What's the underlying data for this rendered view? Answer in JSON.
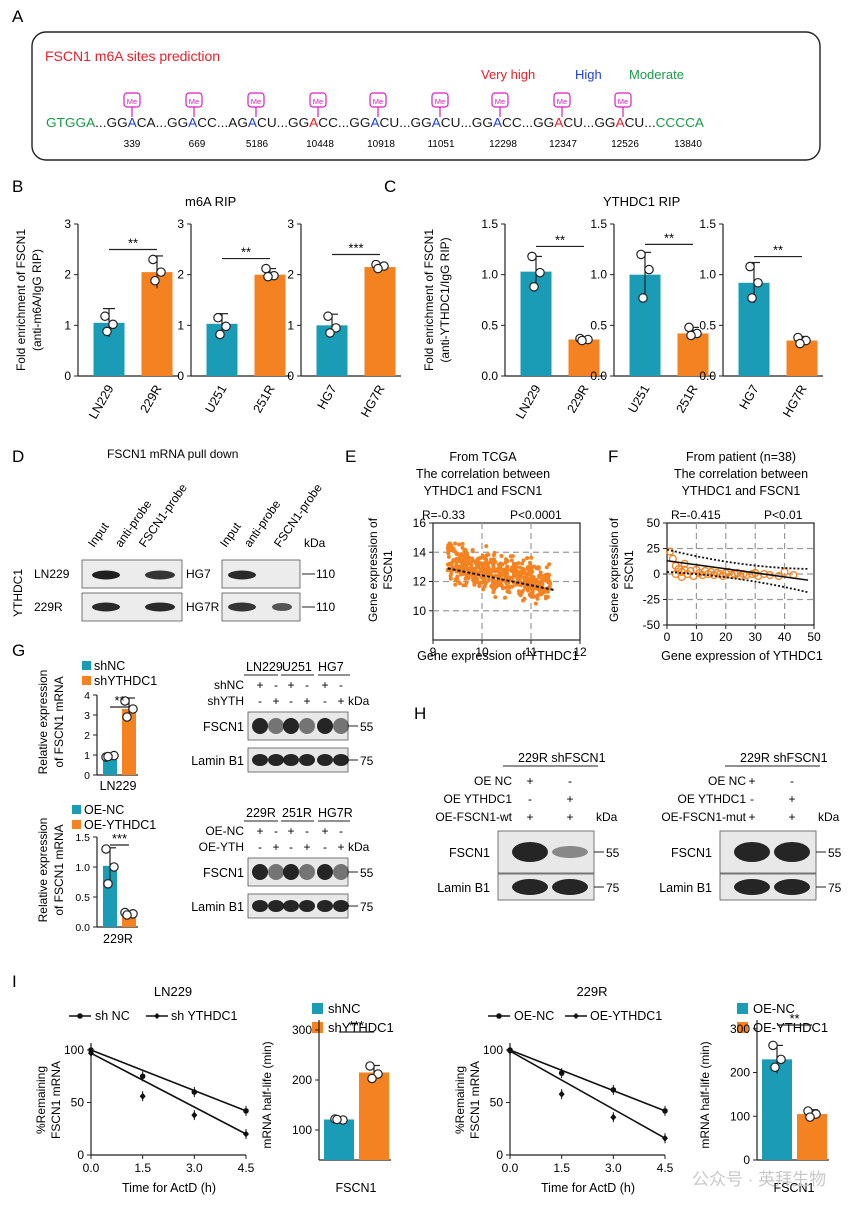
{
  "panels": {
    "A": "A",
    "B": "B",
    "C": "C",
    "D": "D",
    "E": "E",
    "F": "F",
    "G": "G",
    "H": "H",
    "I": "I"
  },
  "colors": {
    "teal": "#1a9bb6",
    "orange": "#f58220",
    "red": "#e8202a",
    "blue": "#1f3fd8",
    "green": "#1a9a48",
    "magenta": "#d61fbf",
    "grid": "#9a9a9a"
  },
  "panelA": {
    "title": "FSCN1 m6A sites prediction",
    "legend": {
      "very_high": "Very high",
      "high": "High",
      "moderate": "Moderate"
    },
    "marker": "Me",
    "seq": [
      {
        "t": "GTGGA",
        "c": "green"
      },
      {
        "t": "...",
        "c": "black"
      },
      {
        "t": "GG",
        "c": "black"
      },
      {
        "t": "A",
        "c": "blue"
      },
      {
        "t": "CA",
        "c": "black"
      },
      {
        "t": "...",
        "c": "black"
      },
      {
        "t": "GG",
        "c": "black"
      },
      {
        "t": "A",
        "c": "blue"
      },
      {
        "t": "CC",
        "c": "black"
      },
      {
        "t": "...",
        "c": "black"
      },
      {
        "t": "AG",
        "c": "black"
      },
      {
        "t": "A",
        "c": "blue"
      },
      {
        "t": "CU",
        "c": "black"
      },
      {
        "t": "...",
        "c": "black"
      },
      {
        "t": "GG",
        "c": "black"
      },
      {
        "t": "A",
        "c": "red"
      },
      {
        "t": "CC",
        "c": "black"
      },
      {
        "t": "...",
        "c": "black"
      },
      {
        "t": "GG",
        "c": "black"
      },
      {
        "t": "A",
        "c": "blue"
      },
      {
        "t": "CU",
        "c": "black"
      },
      {
        "t": "...",
        "c": "black"
      },
      {
        "t": "GG",
        "c": "black"
      },
      {
        "t": "A",
        "c": "blue"
      },
      {
        "t": "CU",
        "c": "black"
      },
      {
        "t": "...",
        "c": "black"
      },
      {
        "t": "GG",
        "c": "black"
      },
      {
        "t": "A",
        "c": "blue"
      },
      {
        "t": "CC",
        "c": "black"
      },
      {
        "t": "...",
        "c": "black"
      },
      {
        "t": "GG",
        "c": "black"
      },
      {
        "t": "A",
        "c": "red"
      },
      {
        "t": "CU",
        "c": "black"
      },
      {
        "t": "...",
        "c": "black"
      },
      {
        "t": "GG",
        "c": "black"
      },
      {
        "t": "A",
        "c": "red"
      },
      {
        "t": "CU",
        "c": "black"
      },
      {
        "t": "...",
        "c": "black"
      },
      {
        "t": "CCCCA",
        "c": "green"
      }
    ],
    "positions": [
      "339",
      "669",
      "5186",
      "10448",
      "10918",
      "11051",
      "12298",
      "12347",
      "12526",
      "13840"
    ]
  },
  "panelB": {
    "title": "m6A RIP",
    "ylabel1": "Fold enrichment of FSCN1",
    "ylabel2": "(anti-m6A/IgG RIP)",
    "ylim": [
      0,
      3
    ],
    "yticks": [
      "0",
      "1",
      "2",
      "3"
    ],
    "groups": [
      {
        "labels": [
          "LN229",
          "229R"
        ],
        "means": [
          1.05,
          2.05
        ],
        "sd": [
          0.28,
          0.32
        ],
        "points": [
          [
            1.18,
            1.02,
            0.88
          ],
          [
            2.3,
            2.05,
            1.88
          ]
        ],
        "sig": "**"
      },
      {
        "labels": [
          "U251",
          "251R"
        ],
        "means": [
          1.03,
          2.0
        ],
        "sd": [
          0.2,
          0.12
        ],
        "points": [
          [
            1.15,
            0.98,
            0.82
          ],
          [
            2.12,
            1.98,
            1.96
          ]
        ],
        "sig": "**"
      },
      {
        "labels": [
          "HG7",
          "HG7R"
        ],
        "means": [
          1.0,
          2.15
        ],
        "sd": [
          0.22,
          0.05
        ],
        "points": [
          [
            1.18,
            0.95,
            0.85
          ],
          [
            2.2,
            2.17,
            2.12
          ]
        ],
        "sig": "***"
      }
    ]
  },
  "panelC": {
    "title": "YTHDC1 RIP",
    "ylabel1": "Fold enrichment of FSCN1",
    "ylabel2": "(anti-YTHDC1/IgG RIP)",
    "ylim": [
      0,
      1.5
    ],
    "yticks": [
      "0.0",
      "0.5",
      "1.0",
      "1.5"
    ],
    "groups": [
      {
        "labels": [
          "LN229",
          "229R"
        ],
        "means": [
          1.03,
          0.36
        ],
        "sd": [
          0.15,
          0.02
        ],
        "points": [
          [
            1.18,
            1.02,
            0.88
          ],
          [
            0.37,
            0.36,
            0.35
          ]
        ],
        "sig": "**"
      },
      {
        "labels": [
          "U251",
          "251R"
        ],
        "means": [
          1.0,
          0.42
        ],
        "sd": [
          0.22,
          0.06
        ],
        "points": [
          [
            1.2,
            1.05,
            0.77
          ],
          [
            0.48,
            0.42,
            0.4
          ]
        ],
        "sig": "**"
      },
      {
        "labels": [
          "HG7",
          "HG7R"
        ],
        "means": [
          0.92,
          0.35
        ],
        "sd": [
          0.2,
          0.04
        ],
        "points": [
          [
            1.08,
            0.92,
            0.77
          ],
          [
            0.38,
            0.35,
            0.32
          ]
        ],
        "sig": "**"
      }
    ]
  },
  "panelD": {
    "title": "FSCN1 mRNA  pull down",
    "lanes": [
      "Input",
      "anti-probe",
      "FSCN1-probe"
    ],
    "left_rows": [
      "LN229",
      "229R"
    ],
    "left_side": "YTHDC1",
    "right_rows": [
      "HG7",
      "HG7R"
    ],
    "kda": "kDa",
    "markers": [
      "110",
      "110"
    ]
  },
  "panelE": {
    "line1": "From TCGA",
    "line2": "The correlation between",
    "line3": "YTHDC1 and FSCN1",
    "r": "R=-0.33",
    "p": "P<0.0001",
    "ylabel1": "Gene expression of",
    "ylabel2": "FSCN1",
    "xlabel": "Gene expression of YTHDC1",
    "xticks": [
      "9",
      "10",
      "11",
      "12"
    ],
    "yticks": [
      "10",
      "12",
      "14",
      "16"
    ]
  },
  "panelF": {
    "line1": "From patient (n=38)",
    "line2": "The correlation between",
    "line3": "YTHDC1 and FSCN1",
    "r": "R=-0.415",
    "p": "P<0.01",
    "ylabel1": "Gene expression of",
    "ylabel2": "FSCN1",
    "xlabel": "Gene expression of YTHDC1",
    "xticks": [
      "0",
      "10",
      "20",
      "30",
      "40",
      "50"
    ],
    "yticks": [
      "-50",
      "-25",
      "0",
      "25",
      "50"
    ]
  },
  "panelG": {
    "top": {
      "legend": [
        "shNC",
        "shYTHDC1"
      ],
      "ylabel1": "Relative expression",
      "ylabel2": "of FSCN1 mRNA",
      "yticks": [
        "0",
        "1",
        "2",
        "3",
        "4"
      ],
      "means": [
        0.93,
        3.3
      ],
      "sd": [
        0.08,
        0.55
      ],
      "points": [
        [
          0.9,
          0.97,
          0.92
        ],
        [
          3.7,
          3.3,
          2.9
        ]
      ],
      "sig": "**",
      "xlabel": "LN229"
    },
    "bottom": {
      "legend": [
        "OE-NC",
        "OE-YTHDC1"
      ],
      "ylabel1": "Relative expression",
      "ylabel2": "of FSCN1 mRNA",
      "yticks": [
        "0.0",
        "0.5",
        "1.0",
        "1.5"
      ],
      "means": [
        1.02,
        0.22
      ],
      "sd": [
        0.3,
        0.03
      ],
      "points": [
        [
          1.3,
          1.0,
          0.72
        ],
        [
          0.24,
          0.22,
          0.2
        ]
      ],
      "sig": "***",
      "xlabel": "229R"
    },
    "blot_top": {
      "cells": [
        "LN229",
        "U251",
        "HG7"
      ],
      "row1": "shNC",
      "row2": "shYTH",
      "signs1": [
        "+",
        "-",
        "+",
        "-",
        "+",
        "-"
      ],
      "signs2": [
        "-",
        "+",
        "-",
        "+",
        "-",
        "+"
      ],
      "bands": [
        "FSCN1",
        "Lamin B1"
      ],
      "markers": [
        "55",
        "75"
      ],
      "kda": "kDa"
    },
    "blot_bottom": {
      "cells": [
        "229R",
        "251R",
        "HG7R"
      ],
      "row1": "OE-NC",
      "row2": "OE-YTH",
      "signs1": [
        "+",
        "-",
        "+",
        "-",
        "+",
        "-"
      ],
      "signs2": [
        "-",
        "+",
        "-",
        "+",
        "-",
        "+"
      ],
      "bands": [
        "FSCN1",
        "Lamin B1"
      ],
      "markers": [
        "55",
        "75"
      ],
      "kda": "kDa"
    }
  },
  "panelH": {
    "left": {
      "title": "229R shFSCN1",
      "rows": [
        "OE NC",
        "OE YTHDC1",
        "OE-FSCN1-wt"
      ],
      "signs": [
        [
          "+",
          "-"
        ],
        [
          "-",
          "+"
        ],
        [
          "+",
          "+"
        ]
      ],
      "bands": [
        "FSCN1",
        "Lamin B1"
      ],
      "markers": [
        "55",
        "75"
      ],
      "kda": "kDa"
    },
    "right": {
      "title": "229R shFSCN1",
      "rows": [
        "OE NC",
        "OE YTHDC1",
        "OE-FSCN1-mut"
      ],
      "signs": [
        [
          "+",
          "-"
        ],
        [
          "-",
          "+"
        ],
        [
          "+",
          "+"
        ]
      ],
      "bands": [
        "FSCN1",
        "Lamin B1"
      ],
      "markers": [
        "55",
        "75"
      ],
      "kda": "kDa"
    }
  },
  "panelI": {
    "left_line": {
      "title": "LN229",
      "legend": [
        "sh NC",
        "sh YTHDC1"
      ],
      "ylabel1": "%Remaining",
      "ylabel2": "FSCN1 mRNA",
      "xlabel": "Time for ActD (h)",
      "xticks": [
        "0.0",
        "1.5",
        "3.0",
        "4.5"
      ],
      "yticks": [
        "0",
        "50",
        "100"
      ],
      "x": [
        0,
        1.5,
        3,
        4.5
      ],
      "s1": [
        100,
        75,
        60,
        42
      ],
      "s2": [
        97,
        56,
        38,
        20
      ]
    },
    "left_bar": {
      "legend": [
        "shNC",
        "shYTHDC1"
      ],
      "ylabel": "mRNA half-life (min)",
      "yticks": [
        "100",
        "200",
        "300"
      ],
      "means": [
        121,
        215
      ],
      "sd": [
        2,
        14
      ],
      "points": [
        [
          122,
          120,
          121
        ],
        [
          228,
          212,
          203
        ]
      ],
      "sig": "***",
      "xlabel": "FSCN1"
    },
    "right_line": {
      "title": "229R",
      "legend": [
        "OE-NC",
        "OE-YTHDC1"
      ],
      "ylabel1": "%Remaining",
      "ylabel2": "FSCN1 mRNA",
      "xlabel": "Time for ActD (h)",
      "xticks": [
        "0.0",
        "1.5",
        "3.0",
        "4.5"
      ],
      "yticks": [
        "0",
        "50",
        "100"
      ],
      "x": [
        0,
        1.5,
        3,
        4.5
      ],
      "s1": [
        100,
        78,
        62,
        42
      ],
      "s2": [
        99,
        58,
        36,
        16
      ]
    },
    "right_bar": {
      "legend": [
        "OE-NC",
        "OE-YTHDC1"
      ],
      "ylabel": "mRNA half-life (min)",
      "yticks": [
        "0",
        "100",
        "200",
        "300"
      ],
      "means": [
        230,
        105
      ],
      "sd": [
        32,
        10
      ],
      "points": [
        [
          262,
          230,
          212
        ],
        [
          112,
          105,
          98
        ]
      ],
      "sig": "**",
      "xlabel": "FSCN1"
    }
  },
  "watermark": "公众号 · 英拜生物"
}
